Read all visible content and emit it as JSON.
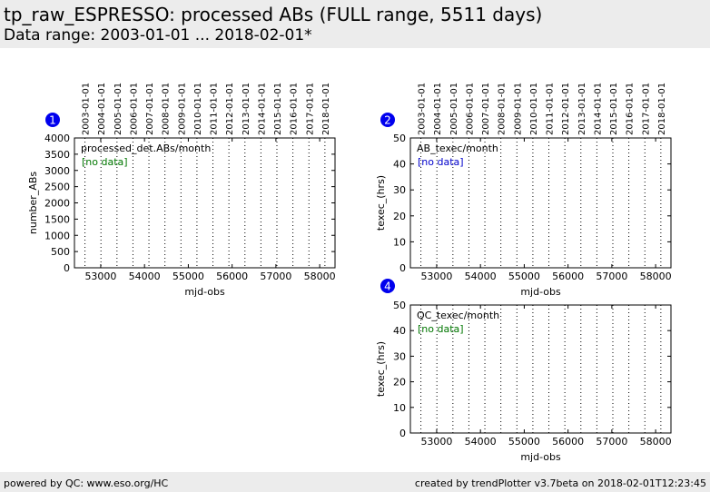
{
  "header": {
    "title": "tp_raw_ESPRESSO: processed ABs (FULL range, 5511 days)",
    "subtitle": "Data range: 2003-01-01 ... 2018-02-01*"
  },
  "footer": {
    "left": "powered by QC: www.eso.org/HC",
    "right": "created by trendPlotter v3.7beta on 2018-02-01T12:23:45"
  },
  "colors": {
    "badge": "#0000ee",
    "no_data_green": "#007700",
    "no_data_blue": "#0000cc",
    "header_bg": "#ececec"
  },
  "chart_data": [
    {
      "type": "scatter",
      "badge": "1",
      "title": "processed_det.ABs/month",
      "annotation": "[no data]",
      "annotation_color": "green",
      "xlabel": "mjd-obs",
      "ylabel": "number_ABs",
      "xlim": [
        52400,
        58350
      ],
      "ylim": [
        0,
        4000
      ],
      "xticks": [
        53000,
        54000,
        55000,
        56000,
        57000,
        58000
      ],
      "yticks": [
        0,
        500,
        1000,
        1500,
        2000,
        2500,
        3000,
        3500,
        4000
      ],
      "x": [],
      "y": []
    },
    {
      "type": "scatter",
      "badge": "2",
      "title": "AB_texec/month",
      "annotation": "[no data]",
      "annotation_color": "blue",
      "xlabel": "mjd-obs",
      "ylabel": "texec_(hrs)",
      "xlim": [
        52400,
        58350
      ],
      "ylim": [
        0,
        50
      ],
      "xticks": [
        53000,
        54000,
        55000,
        56000,
        57000,
        58000
      ],
      "yticks": [
        0,
        10,
        20,
        30,
        40,
        50
      ],
      "x": [],
      "y": []
    },
    {
      "type": "scatter",
      "badge": "4",
      "title": "QC_texec/month",
      "annotation": "[no data]",
      "annotation_color": "green",
      "xlabel": "mjd-obs",
      "ylabel": "texec_(hrs)",
      "xlim": [
        52400,
        58350
      ],
      "ylim": [
        0,
        50
      ],
      "xticks": [
        53000,
        54000,
        55000,
        56000,
        57000,
        58000
      ],
      "yticks": [
        0,
        10,
        20,
        30,
        40,
        50
      ],
      "x": [],
      "y": []
    }
  ],
  "date_axis": {
    "labels": [
      "2003-01-01",
      "2004-01-01",
      "2005-01-01",
      "2006-01-01",
      "2007-01-01",
      "2008-01-01",
      "2009-01-01",
      "2010-01-01",
      "2011-01-01",
      "2012-01-01",
      "2013-01-01",
      "2014-01-01",
      "2015-01-01",
      "2016-01-01",
      "2017-01-01",
      "2018-01-01"
    ],
    "mjd": [
      52640,
      53005,
      53371,
      53736,
      54101,
      54466,
      54832,
      55197,
      55562,
      55927,
      56293,
      56658,
      57023,
      57388,
      57754,
      58119
    ]
  }
}
